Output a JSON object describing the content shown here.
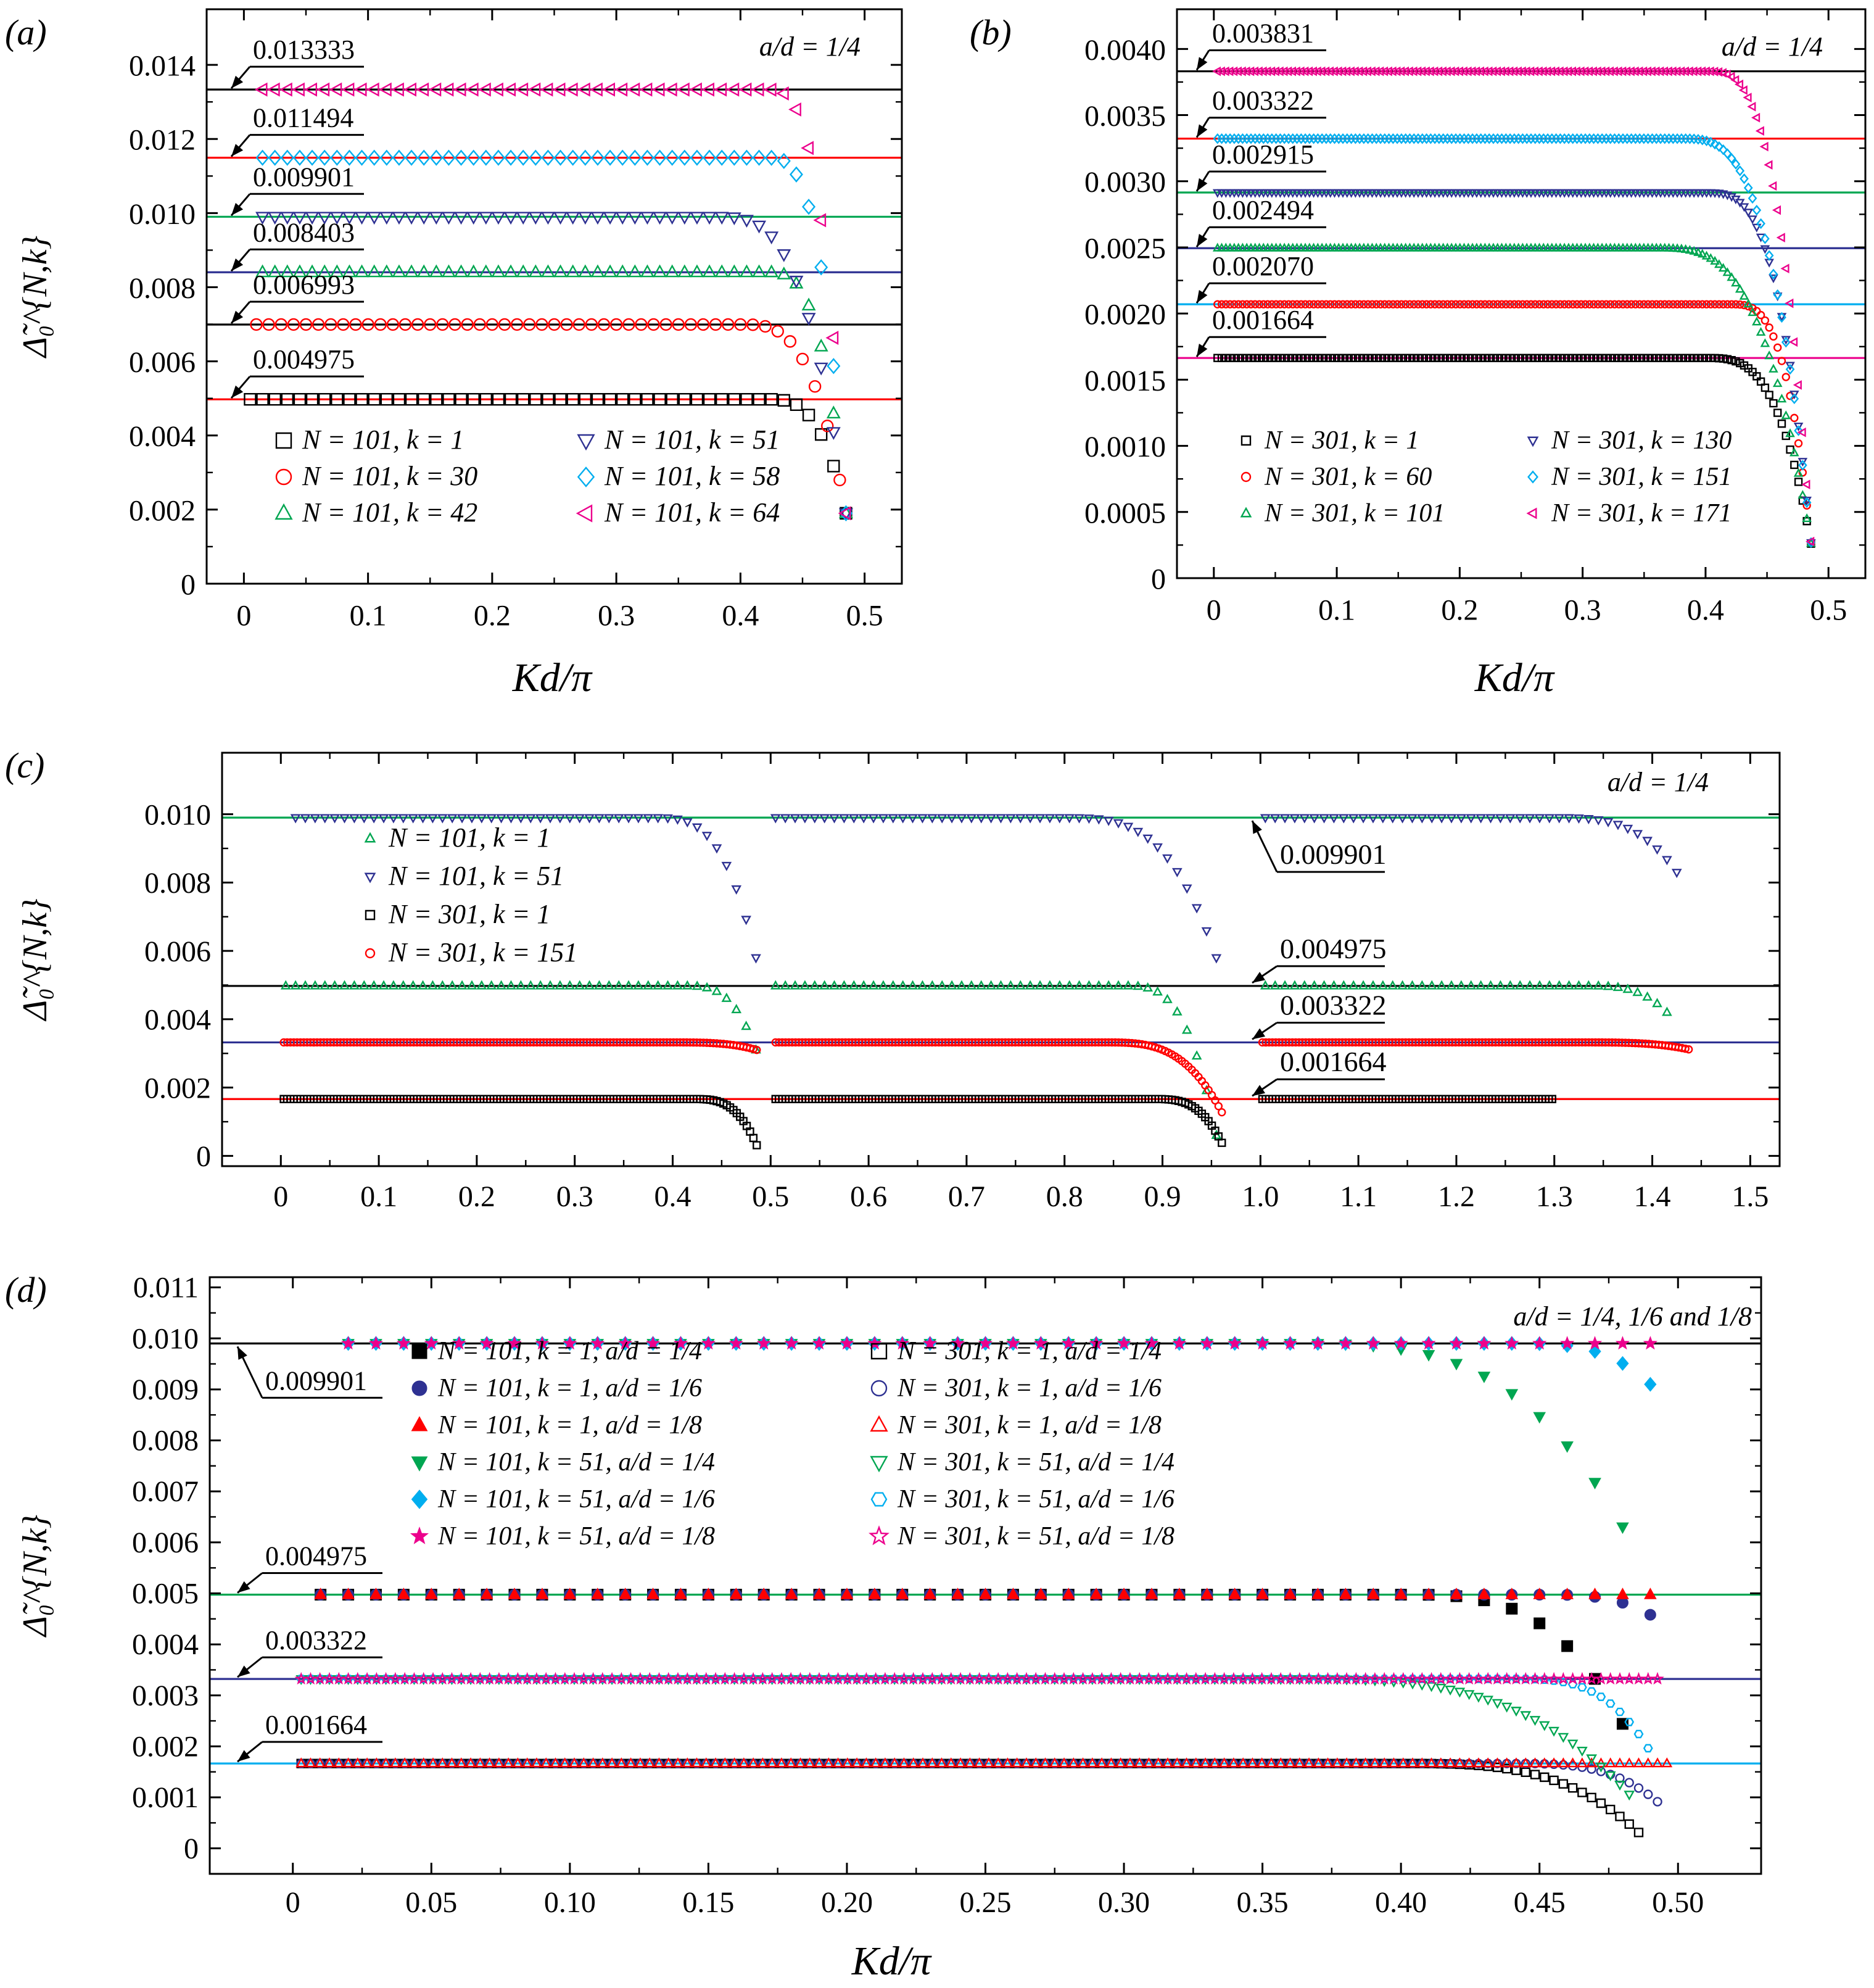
{
  "figure": {
    "panel_letters": [
      "(a)",
      "(b)",
      "(c)",
      "(d)"
    ],
    "y_axis_label": "Δ̃₀^{N,k}",
    "x_axis_label": "Kd/π"
  },
  "chart_data": [
    {
      "id": "a",
      "type": "scatter",
      "panel_label": "(a)",
      "annotation": "a/d = 1/4",
      "xlabel": "Kd/π",
      "ylabel": "Δ̃₀^{N,k}",
      "xlim": [
        -0.03,
        0.53
      ],
      "ylim": [
        0,
        0.0155
      ],
      "xticks": [
        0,
        0.1,
        0.2,
        0.3,
        0.4,
        0.5
      ],
      "xtick_labels": [
        "0",
        "0.1",
        "0.2",
        "0.3",
        "0.4",
        "0.5"
      ],
      "yticks": [
        0,
        0.002,
        0.004,
        0.006,
        0.008,
        0.01,
        0.012,
        0.014
      ],
      "ytick_labels": [
        "0",
        "0.002",
        "0.004",
        "0.006",
        "0.008",
        "0.010",
        "0.012",
        "0.014"
      ],
      "reference_lines": [
        {
          "value": 0.013333,
          "label": "0.013333",
          "color": "#000000"
        },
        {
          "value": 0.011494,
          "label": "0.011494",
          "color": "#ff0000"
        },
        {
          "value": 0.009901,
          "label": "0.009901",
          "color": "#00a651"
        },
        {
          "value": 0.008403,
          "label": "0.008403",
          "color": "#2e3192"
        },
        {
          "value": 0.006993,
          "label": "0.006993",
          "color": "#000000"
        },
        {
          "value": 0.004975,
          "label": "0.004975",
          "color": "#ff0000"
        }
      ],
      "legend_cols": 2,
      "series": [
        {
          "name": "N = 101, k = 1",
          "marker": "square-open",
          "color": "#000000",
          "plateau": 0.004975,
          "x_start": 0.005,
          "x_end": 0.485,
          "step": 0.01,
          "x_drop": 0.42,
          "end_value": 0.0019
        },
        {
          "name": "N = 101, k = 30",
          "marker": "circle-open",
          "color": "#ff0000",
          "plateau": 0.006993,
          "x_start": 0.01,
          "x_end": 0.485,
          "step": 0.01,
          "x_drop": 0.4,
          "end_value": 0.0019
        },
        {
          "name": "N = 101, k = 42",
          "marker": "triangle-up-open",
          "color": "#00a651",
          "plateau": 0.008403,
          "x_start": 0.015,
          "x_end": 0.485,
          "step": 0.01,
          "x_drop": 0.42,
          "end_value": 0.0019
        },
        {
          "name": "N = 101, k = 51",
          "marker": "triangle-down-open",
          "color": "#2e3192",
          "plateau": 0.009901,
          "x_start": 0.015,
          "x_end": 0.485,
          "step": 0.01,
          "x_drop": 0.38,
          "end_value": 0.0019
        },
        {
          "name": "N = 101, k = 58",
          "marker": "diamond-open",
          "color": "#00aeef",
          "plateau": 0.011494,
          "x_start": 0.015,
          "x_end": 0.485,
          "step": 0.01,
          "x_drop": 0.42,
          "end_value": 0.0019
        },
        {
          "name": "N = 101, k = 64",
          "marker": "triangle-left-open",
          "color": "#ec008c",
          "plateau": 0.013333,
          "x_start": 0.015,
          "x_end": 0.485,
          "step": 0.01,
          "x_drop": 0.42,
          "end_value": 0.0019
        }
      ]
    },
    {
      "id": "b",
      "type": "scatter",
      "panel_label": "(b)",
      "annotation": "a/d = 1/4",
      "xlabel": "Kd/π",
      "ylabel": "",
      "xlim": [
        -0.03,
        0.53
      ],
      "ylim": [
        0,
        0.0043
      ],
      "xticks": [
        0,
        0.1,
        0.2,
        0.3,
        0.4,
        0.5
      ],
      "xtick_labels": [
        "0",
        "0.1",
        "0.2",
        "0.3",
        "0.4",
        "0.5"
      ],
      "yticks": [
        0,
        0.0005,
        0.001,
        0.0015,
        0.002,
        0.0025,
        0.003,
        0.0035,
        0.004
      ],
      "ytick_labels": [
        "0",
        "0.0005",
        "0.0010",
        "0.0015",
        "0.0020",
        "0.0025",
        "0.0030",
        "0.0035",
        "0.0040"
      ],
      "reference_lines": [
        {
          "value": 0.003831,
          "label": "0.003831",
          "color": "#000000"
        },
        {
          "value": 0.003322,
          "label": "0.003322",
          "color": "#ff0000"
        },
        {
          "value": 0.002915,
          "label": "0.002915",
          "color": "#00a651"
        },
        {
          "value": 0.002494,
          "label": "0.002494",
          "color": "#2e3192"
        },
        {
          "value": 0.00207,
          "label": "0.002070",
          "color": "#00aeef"
        },
        {
          "value": 0.001664,
          "label": "0.001664",
          "color": "#ec008c"
        }
      ],
      "legend_cols": 2,
      "series": [
        {
          "name": "N = 301, k = 1",
          "marker": "square-open",
          "color": "#000000",
          "plateau": 0.001664,
          "x_start": 0.003,
          "x_end": 0.486,
          "step": 0.0034,
          "x_drop": 0.4,
          "end_value": 0.00025
        },
        {
          "name": "N = 301, k = 60",
          "marker": "circle-open",
          "color": "#ff0000",
          "plateau": 0.00207,
          "x_start": 0.003,
          "x_end": 0.486,
          "step": 0.0034,
          "x_drop": 0.42,
          "end_value": 0.00025
        },
        {
          "name": "N = 301, k = 101",
          "marker": "triangle-up-open",
          "color": "#00a651",
          "plateau": 0.002494,
          "x_start": 0.003,
          "x_end": 0.486,
          "step": 0.0034,
          "x_drop": 0.36,
          "end_value": 0.00025
        },
        {
          "name": "N = 301, k = 130",
          "marker": "triangle-down-open",
          "color": "#2e3192",
          "plateau": 0.002915,
          "x_start": 0.003,
          "x_end": 0.486,
          "step": 0.0034,
          "x_drop": 0.4,
          "end_value": 0.00025
        },
        {
          "name": "N = 301, k = 151",
          "marker": "diamond-open",
          "color": "#00aeef",
          "plateau": 0.003322,
          "x_start": 0.003,
          "x_end": 0.486,
          "step": 0.0034,
          "x_drop": 0.38,
          "end_value": 0.00025
        },
        {
          "name": "N = 301, k = 171",
          "marker": "triangle-left-open",
          "color": "#ec008c",
          "plateau": 0.003831,
          "x_start": 0.003,
          "x_end": 0.486,
          "step": 0.0034,
          "x_drop": 0.4,
          "end_value": 0.00025
        }
      ]
    },
    {
      "id": "c",
      "type": "scatter",
      "panel_label": "(c)",
      "annotation": "a/d = 1/4",
      "xlabel": "",
      "ylabel": "Δ̃₀^{N,k}",
      "xlim": [
        -0.06,
        1.53
      ],
      "ylim": [
        -0.0003,
        0.0118
      ],
      "xticks": [
        0,
        0.1,
        0.2,
        0.3,
        0.4,
        0.5,
        0.6,
        0.7,
        0.8,
        0.9,
        1.0,
        1.1,
        1.2,
        1.3,
        1.4,
        1.5
      ],
      "xtick_labels": [
        "0",
        "0.1",
        "0.2",
        "0.3",
        "0.4",
        "0.5",
        "0.6",
        "0.7",
        "0.8",
        "0.9",
        "1.0",
        "1.1",
        "1.2",
        "1.3",
        "1.4",
        "1.5"
      ],
      "yticks": [
        0,
        0.002,
        0.004,
        0.006,
        0.008,
        0.01
      ],
      "ytick_labels": [
        "0",
        "0.002",
        "0.004",
        "0.006",
        "0.008",
        "0.010"
      ],
      "reference_lines": [
        {
          "value": 0.009901,
          "label": "0.009901",
          "color": "#00a651"
        },
        {
          "value": 0.004975,
          "label": "0.004975",
          "color": "#000000"
        },
        {
          "value": 0.003322,
          "label": "0.003322",
          "color": "#2e3192"
        },
        {
          "value": 0.001664,
          "label": "0.001664",
          "color": "#ff0000"
        }
      ],
      "legend_cols": 1,
      "series": [
        {
          "name": "N = 101, k = 1",
          "marker": "triangle-up-open",
          "color": "#00a651",
          "plateau": 0.004975,
          "segments": [
            [
              0.005,
              0.485,
              0.41,
              0.0031
            ],
            [
              0.505,
              0.955,
              0.86,
              0.0006
            ],
            [
              1.005,
              1.415,
              1.33,
              0.0042
            ]
          ],
          "step": 0.01
        },
        {
          "name": "N = 101, k = 51",
          "marker": "triangle-down-open",
          "color": "#2e3192",
          "plateau": 0.009901,
          "segments": [
            [
              0.015,
              0.485,
              0.38,
              0.0058
            ],
            [
              0.505,
              0.955,
              0.8,
              0.0058
            ],
            [
              1.005,
              1.425,
              1.3,
              0.0083
            ]
          ],
          "step": 0.01
        },
        {
          "name": "N = 301, k = 1",
          "marker": "square-open",
          "color": "#000000",
          "plateau": 0.001664,
          "segments": [
            [
              0.003,
              0.486,
              0.42,
              0.0003
            ],
            [
              0.505,
              0.962,
              0.89,
              0.0003
            ],
            [
              1.002,
              1.3,
              2.0,
              0.0016
            ]
          ],
          "step": 0.0034
        },
        {
          "name": "N = 301, k = 151",
          "marker": "circle-open",
          "color": "#ff0000",
          "plateau": 0.003322,
          "segments": [
            [
              0.003,
              0.486,
              0.4,
              0.0031
            ],
            [
              0.505,
              0.962,
              0.84,
              0.0012
            ],
            [
              1.002,
              1.44,
              1.33,
              0.0031
            ]
          ],
          "step": 0.0034
        }
      ]
    },
    {
      "id": "d",
      "type": "scatter",
      "panel_label": "(d)",
      "annotation": "a/d = 1/4, 1/6 and 1/8",
      "xlabel": "Kd/π",
      "ylabel": "Δ̃₀^{N,k}",
      "xlim": [
        -0.03,
        0.53
      ],
      "ylim": [
        -0.0005,
        0.0112
      ],
      "xticks": [
        0,
        0.05,
        0.1,
        0.15,
        0.2,
        0.25,
        0.3,
        0.35,
        0.4,
        0.45,
        0.5
      ],
      "xtick_labels": [
        "0",
        "0.05",
        "0.10",
        "0.15",
        "0.20",
        "0.25",
        "0.30",
        "0.35",
        "0.40",
        "0.45",
        "0.50"
      ],
      "yticks": [
        0,
        0.001,
        0.002,
        0.003,
        0.004,
        0.005,
        0.006,
        0.007,
        0.008,
        0.009,
        0.01,
        0.011
      ],
      "ytick_labels": [
        "0",
        "0.001",
        "0.002",
        "0.003",
        "0.004",
        "0.005",
        "0.006",
        "0.007",
        "0.008",
        "0.009",
        "0.010",
        "0.011"
      ],
      "reference_lines": [
        {
          "value": 0.009901,
          "label": "0.009901",
          "color": "#000000"
        },
        {
          "value": 0.004975,
          "label": "0.004975",
          "color": "#00a651"
        },
        {
          "value": 0.003322,
          "label": "0.003322",
          "color": "#2e3192"
        },
        {
          "value": 0.001664,
          "label": "0.001664",
          "color": "#00aeef"
        }
      ],
      "legend_cols": 2,
      "series": [
        {
          "name": "N = 101, k = 1, a/d = 1/4",
          "marker": "square-filled",
          "color": "#000000",
          "plateau": 0.004975,
          "x_start": 0.01,
          "x_end": 0.485,
          "step": 0.01,
          "x_drop": 0.4,
          "end_value": 0.0019
        },
        {
          "name": "N = 101, k = 1, a/d = 1/6",
          "marker": "circle-filled",
          "color": "#2e3192",
          "plateau": 0.004975,
          "x_start": 0.01,
          "x_end": 0.495,
          "step": 0.01,
          "x_drop": 0.45,
          "end_value": 0.0044
        },
        {
          "name": "N = 101, k = 1, a/d = 1/8",
          "marker": "triangle-up-filled",
          "color": "#ff0000",
          "plateau": 0.004975,
          "x_start": 0.01,
          "x_end": 0.495,
          "step": 0.01,
          "x_drop": 2.0,
          "end_value": 0.00495
        },
        {
          "name": "N = 101, k = 51, a/d = 1/4",
          "marker": "triangle-down-filled",
          "color": "#00a651",
          "plateau": 0.009901,
          "x_start": 0.02,
          "x_end": 0.485,
          "step": 0.01,
          "x_drop": 0.36,
          "end_value": 0.0058
        },
        {
          "name": "N = 101, k = 51, a/d = 1/6",
          "marker": "diamond-filled",
          "color": "#00aeef",
          "plateau": 0.009901,
          "x_start": 0.02,
          "x_end": 0.49,
          "step": 0.01,
          "x_drop": 0.44,
          "end_value": 0.0091
        },
        {
          "name": "N = 101, k = 51, a/d = 1/8",
          "marker": "star-filled",
          "color": "#ec008c",
          "plateau": 0.009901,
          "x_start": 0.02,
          "x_end": 0.495,
          "step": 0.01,
          "x_drop": 2.0,
          "end_value": 0.0098
        },
        {
          "name": "N = 301, k = 1, a/d = 1/4",
          "marker": "square-open",
          "color": "#000000",
          "plateau": 0.001664,
          "x_start": 0.003,
          "x_end": 0.487,
          "step": 0.0034,
          "x_drop": 0.4,
          "end_value": 0.00025
        },
        {
          "name": "N = 301, k = 1, a/d = 1/6",
          "marker": "circle-open",
          "color": "#2e3192",
          "plateau": 0.001664,
          "x_start": 0.003,
          "x_end": 0.495,
          "step": 0.0034,
          "x_drop": 0.44,
          "end_value": 0.0008
        },
        {
          "name": "N = 301, k = 1, a/d = 1/8",
          "marker": "triangle-up-open",
          "color": "#ff0000",
          "plateau": 0.001664,
          "x_start": 0.003,
          "x_end": 0.498,
          "step": 0.0034,
          "x_drop": 2.0,
          "end_value": 0.0016
        },
        {
          "name": "N = 301, k = 51, a/d = 1/4",
          "marker": "triangle-down-open",
          "color": "#00a651",
          "plateau": 0.003322,
          "x_start": 0.003,
          "x_end": 0.485,
          "step": 0.0034,
          "x_drop": 0.36,
          "end_value": 0.0009
        },
        {
          "name": "N = 301, k = 51, a/d = 1/6",
          "marker": "hexagon-open",
          "color": "#00aeef",
          "plateau": 0.003322,
          "x_start": 0.003,
          "x_end": 0.492,
          "step": 0.0034,
          "x_drop": 0.44,
          "end_value": 0.0017
        },
        {
          "name": "N = 301, k = 51, a/d = 1/8",
          "marker": "star-open",
          "color": "#ec008c",
          "plateau": 0.003322,
          "x_start": 0.003,
          "x_end": 0.495,
          "step": 0.0034,
          "x_drop": 2.0,
          "end_value": 0.003
        }
      ]
    }
  ]
}
